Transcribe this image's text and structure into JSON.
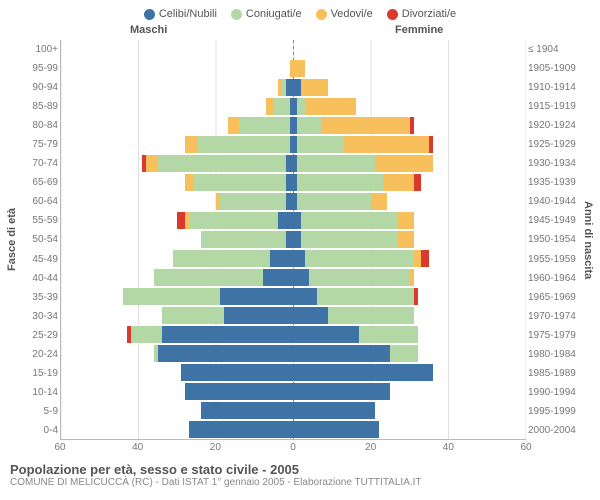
{
  "legend": [
    {
      "label": "Celibi/Nubili",
      "color": "#3f73a6"
    },
    {
      "label": "Coniugati/e",
      "color": "#b3d7a5"
    },
    {
      "label": "Vedovi/e",
      "color": "#f7c05c"
    },
    {
      "label": "Divorziati/e",
      "color": "#d93a2b"
    }
  ],
  "headers": {
    "male": "Maschi",
    "female": "Femmine"
  },
  "ylabels": {
    "left": "Fasce di età",
    "right": "Anni di nascita"
  },
  "title": "Popolazione per età, sesso e stato civile - 2005",
  "subtitle": "COMUNE DI MELICUCCÀ (RC) - Dati ISTAT 1° gennaio 2005 - Elaborazione TUTTITALIA.IT",
  "xmax": 60,
  "xticks": [
    60,
    40,
    20,
    0,
    20,
    40,
    60
  ],
  "colors": {
    "grid": "#e0e0e0",
    "bg": "#ffffff",
    "text": "#555555"
  },
  "rows": [
    {
      "age": "100+",
      "birth": "≤ 1904",
      "m": [
        0,
        0,
        0,
        0
      ],
      "f": [
        0,
        0,
        0,
        0
      ]
    },
    {
      "age": "95-99",
      "birth": "1905-1909",
      "m": [
        0,
        0,
        1,
        0
      ],
      "f": [
        0,
        0,
        3,
        0
      ]
    },
    {
      "age": "90-94",
      "birth": "1910-1914",
      "m": [
        2,
        1,
        1,
        0
      ],
      "f": [
        2,
        0,
        7,
        0
      ]
    },
    {
      "age": "85-89",
      "birth": "1915-1919",
      "m": [
        1,
        4,
        2,
        0
      ],
      "f": [
        1,
        2,
        13,
        0
      ]
    },
    {
      "age": "80-84",
      "birth": "1920-1924",
      "m": [
        1,
        13,
        3,
        0
      ],
      "f": [
        1,
        6,
        23,
        1
      ]
    },
    {
      "age": "75-79",
      "birth": "1925-1929",
      "m": [
        1,
        24,
        3,
        0
      ],
      "f": [
        1,
        12,
        22,
        1
      ]
    },
    {
      "age": "70-74",
      "birth": "1930-1934",
      "m": [
        2,
        33,
        3,
        1
      ],
      "f": [
        1,
        20,
        15,
        0
      ]
    },
    {
      "age": "65-69",
      "birth": "1935-1939",
      "m": [
        2,
        24,
        2,
        0
      ],
      "f": [
        1,
        22,
        8,
        2
      ]
    },
    {
      "age": "60-64",
      "birth": "1940-1944",
      "m": [
        2,
        17,
        1,
        0
      ],
      "f": [
        1,
        19,
        4,
        0
      ]
    },
    {
      "age": "55-59",
      "birth": "1945-1949",
      "m": [
        4,
        23,
        1,
        2
      ],
      "f": [
        2,
        25,
        4,
        0
      ]
    },
    {
      "age": "50-54",
      "birth": "1950-1954",
      "m": [
        2,
        22,
        0,
        0
      ],
      "f": [
        2,
        25,
        4,
        0
      ]
    },
    {
      "age": "45-49",
      "birth": "1955-1959",
      "m": [
        6,
        25,
        0,
        0
      ],
      "f": [
        3,
        28,
        2,
        2
      ]
    },
    {
      "age": "40-44",
      "birth": "1960-1964",
      "m": [
        8,
        28,
        0,
        0
      ],
      "f": [
        4,
        26,
        1,
        0
      ]
    },
    {
      "age": "35-39",
      "birth": "1965-1969",
      "m": [
        19,
        25,
        0,
        0
      ],
      "f": [
        6,
        25,
        0,
        1
      ]
    },
    {
      "age": "30-34",
      "birth": "1970-1974",
      "m": [
        18,
        16,
        0,
        0
      ],
      "f": [
        9,
        22,
        0,
        0
      ]
    },
    {
      "age": "25-29",
      "birth": "1975-1979",
      "m": [
        34,
        8,
        0,
        1
      ],
      "f": [
        17,
        15,
        0,
        0
      ]
    },
    {
      "age": "20-24",
      "birth": "1980-1984",
      "m": [
        35,
        1,
        0,
        0
      ],
      "f": [
        25,
        7,
        0,
        0
      ]
    },
    {
      "age": "15-19",
      "birth": "1985-1989",
      "m": [
        29,
        0,
        0,
        0
      ],
      "f": [
        36,
        0,
        0,
        0
      ]
    },
    {
      "age": "10-14",
      "birth": "1990-1994",
      "m": [
        28,
        0,
        0,
        0
      ],
      "f": [
        25,
        0,
        0,
        0
      ]
    },
    {
      "age": "5-9",
      "birth": "1995-1999",
      "m": [
        24,
        0,
        0,
        0
      ],
      "f": [
        21,
        0,
        0,
        0
      ]
    },
    {
      "age": "0-4",
      "birth": "2000-2004",
      "m": [
        27,
        0,
        0,
        0
      ],
      "f": [
        22,
        0,
        0,
        0
      ]
    }
  ]
}
